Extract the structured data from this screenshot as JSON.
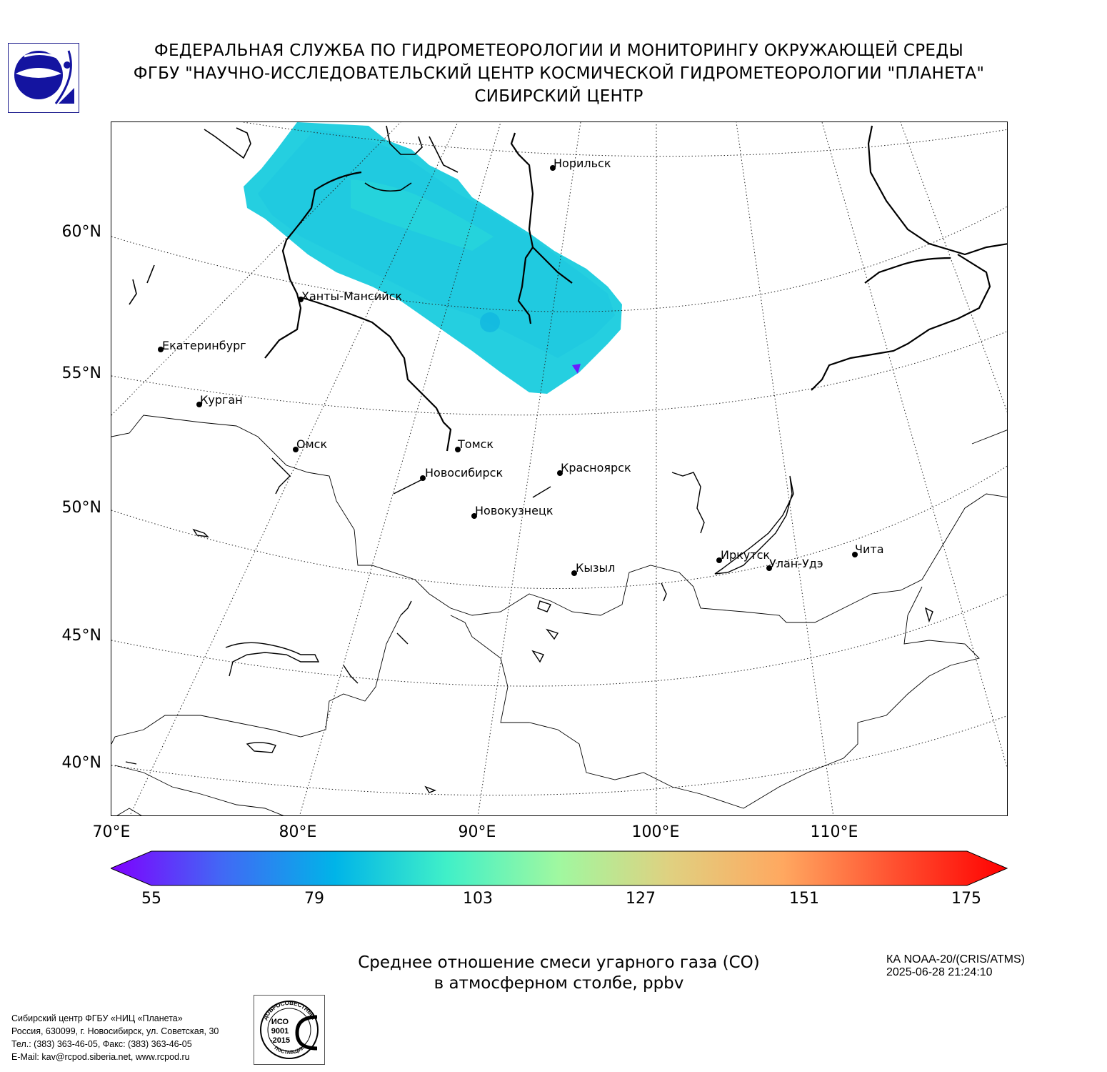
{
  "header": {
    "line1": "ФЕДЕРАЛЬНАЯ СЛУЖБА ПО ГИДРОМЕТЕОРОЛОГИИ И МОНИТОРИНГУ ОКРУЖАЮЩЕЙ СРЕДЫ",
    "line2": "ФГБУ \"НАУЧНО-ИССЛЕДОВАТЕЛЬСКИЙ ЦЕНТР КОСМИЧЕСКОЙ ГИДРОМЕТЕОРОЛОГИИ \"ПЛАНЕТА\"",
    "line3": "СИБИРСКИЙ ЦЕНТР"
  },
  "map": {
    "lat_labels": [
      "60°N",
      "55°N",
      "50°N",
      "45°N",
      "40°N"
    ],
    "lon_labels": [
      "70°E",
      "80°E",
      "90°E",
      "100°E",
      "110°E"
    ],
    "cities": [
      {
        "name": "Норильск"
      },
      {
        "name": "Ханты-Мансийск"
      },
      {
        "name": "Екатеринбург"
      },
      {
        "name": "Курган"
      },
      {
        "name": "Омск"
      },
      {
        "name": "Томск"
      },
      {
        "name": "Новосибирск"
      },
      {
        "name": "Красноярск"
      },
      {
        "name": "Новокузнецк"
      },
      {
        "name": "Кызыл"
      },
      {
        "name": "Иркутск"
      },
      {
        "name": "Улан-Удэ"
      },
      {
        "name": "Чита"
      }
    ],
    "swath_color": "#25cfe0"
  },
  "colorbar": {
    "min": 55,
    "max": 175,
    "ticks": [
      "55",
      "79",
      "103",
      "127",
      "151",
      "175"
    ],
    "colors": [
      "#7f00ff",
      "#4169f5",
      "#00b4e8",
      "#40f0c8",
      "#a0f8a0",
      "#e0d080",
      "#ffa860",
      "#ff5030",
      "#ff0000"
    ]
  },
  "caption": {
    "line1": "Среднее отношение смеси угарного газа (CO)",
    "line2": "в атмосферном столбе, ppbv"
  },
  "satellite": {
    "name": "КА NOAA-20/(CRIS/ATMS)",
    "datetime": "2025-06-28 21:24:10"
  },
  "footer": {
    "line1": "Сибирский центр ФГБУ «НИЦ «Планета»",
    "line2": "Россия, 630099, г. Новосибирск, ул. Советская, 30",
    "line3": "Тел.: (383) 363-46-05, Факс: (383) 363-46-05",
    "line4": "E-Mail: kav@rcpod.siberia.net, www.rcpod.ru"
  },
  "iso_badge": {
    "top_text": "ДОБРОСОВЕСТНЫЙ",
    "iso": "ИСО",
    "number": "9001",
    "year": "-2015",
    "bottom_text": "ПОСТАВЩИК"
  }
}
